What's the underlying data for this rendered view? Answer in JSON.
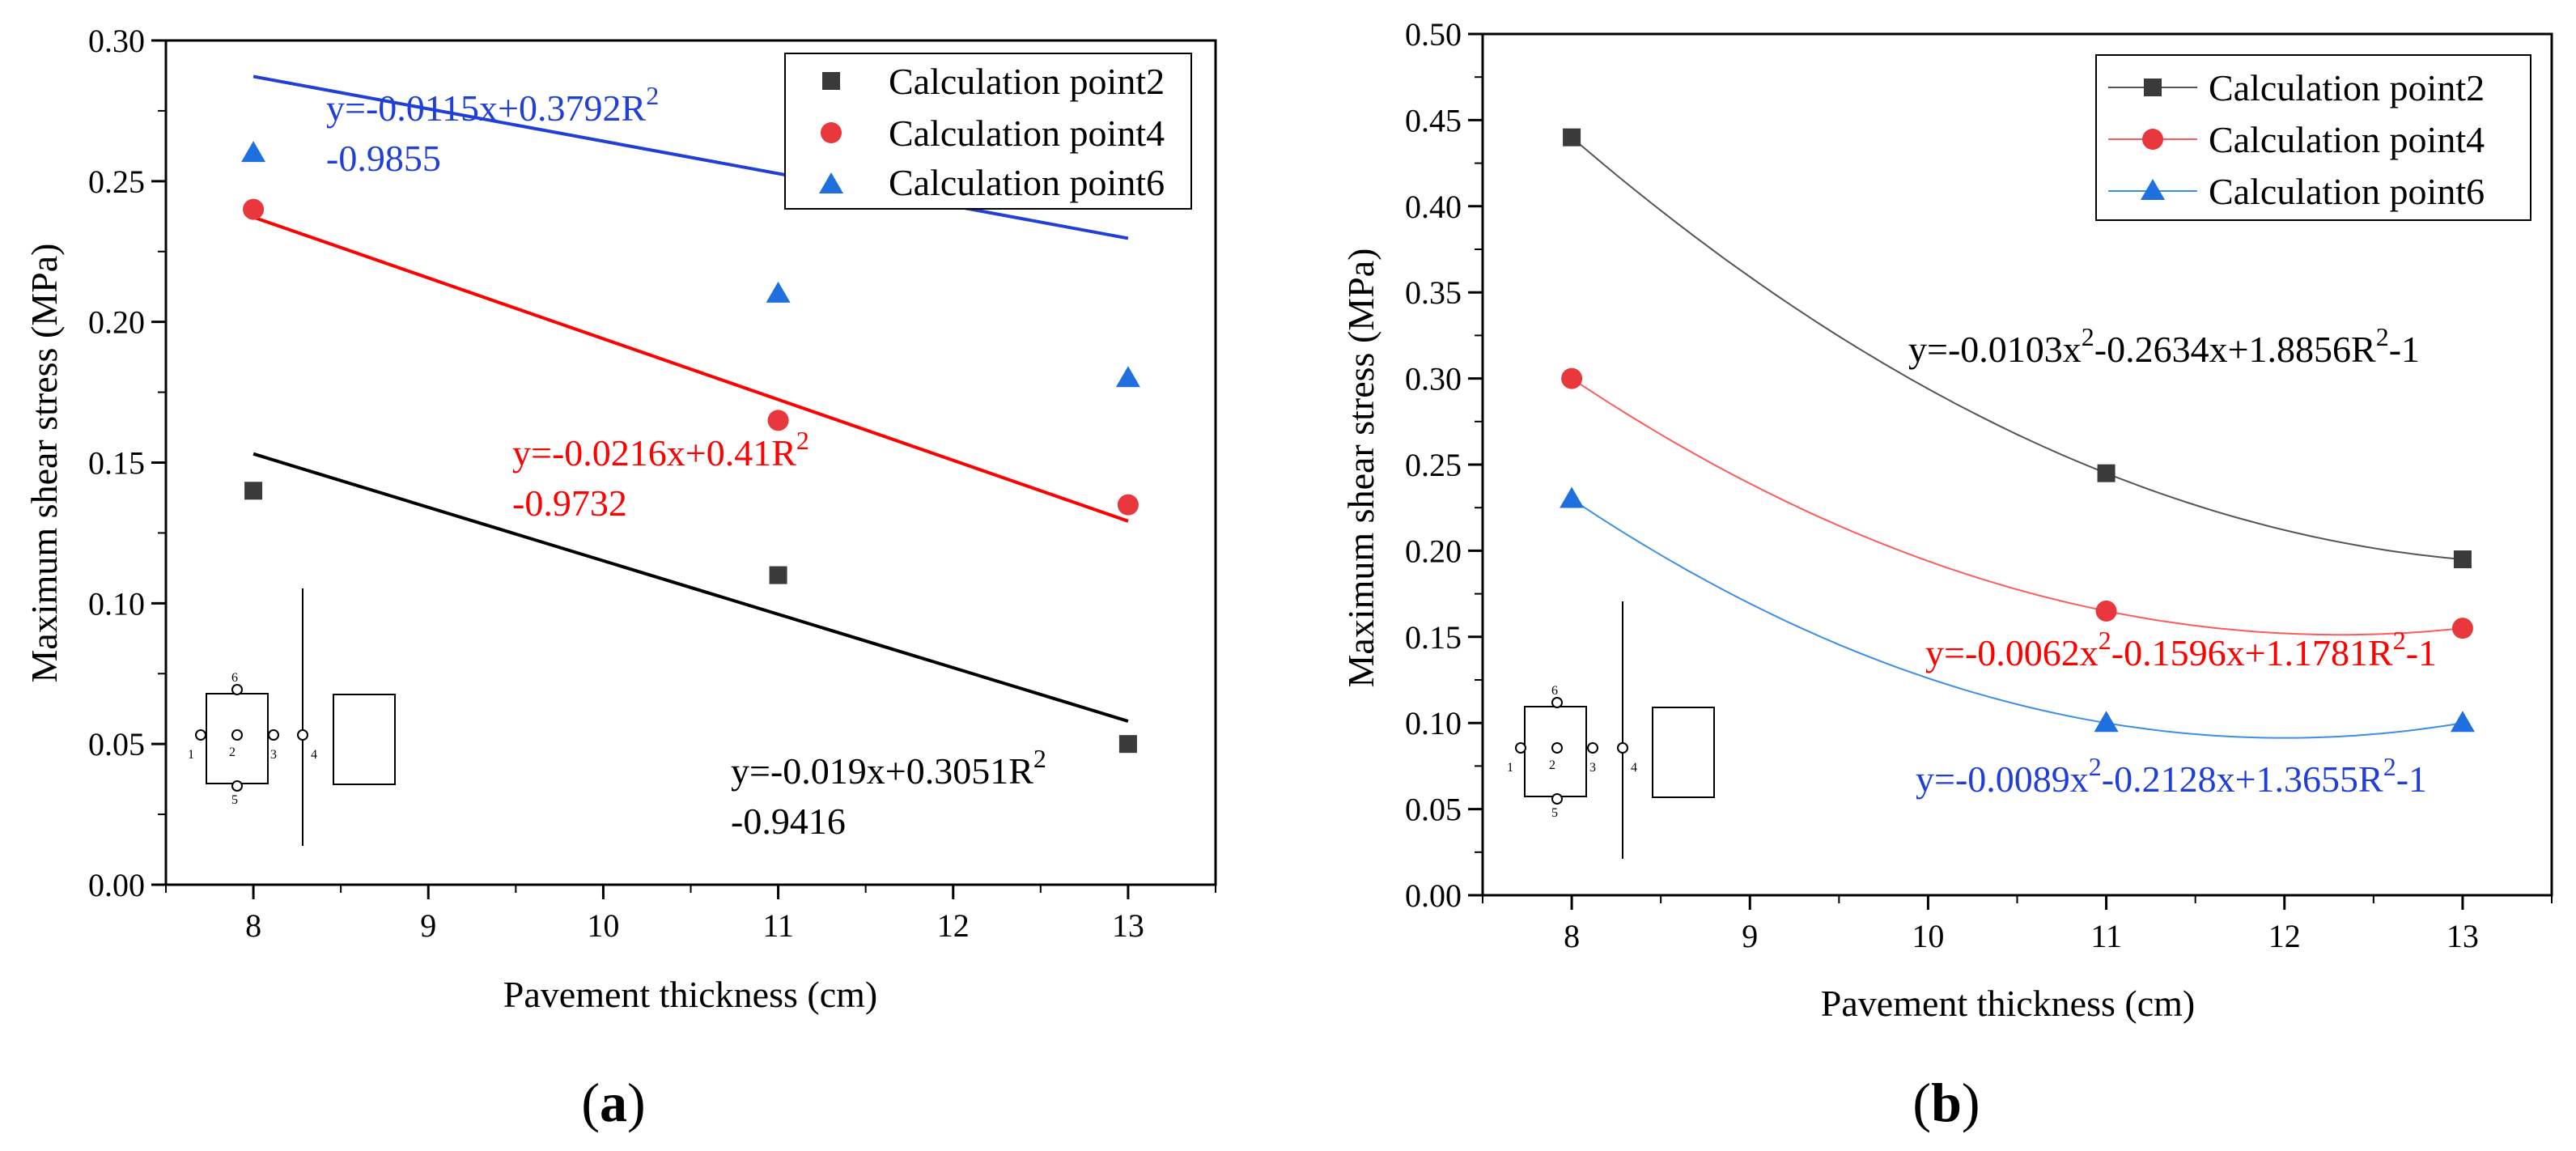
{
  "colors": {
    "series_black": "#3a3a3a",
    "series_red": "#e8383d",
    "series_blue": "#1f6fde",
    "fit_black": "#000000",
    "fit_red": "#ff0000",
    "fit_blue": "#1f3fd8",
    "curve_grey": "#555555",
    "curve_red": "#ff5a5a",
    "curve_blue": "#3d8ee6",
    "eq_black": "#000000",
    "eq_red": "#ff0000",
    "eq_blue": "#1f3fd8"
  },
  "panels": {
    "a": {
      "label": "(a)",
      "label_letter": "a",
      "xlabel": "Pavement thickness (cm)",
      "ylabel": "Maximum shear stress (MPa)",
      "x_ticks": [
        "8",
        "9",
        "10",
        "11",
        "12",
        "13"
      ],
      "y_ticks": [
        "0.00",
        "0.05",
        "0.10",
        "0.15",
        "0.20",
        "0.25",
        "0.30"
      ],
      "legend": [
        "Calculation point2",
        "Calculation point4",
        "Calculation point6"
      ],
      "equations": [
        {
          "line1_a": "y=-0.0115x+0.3792R",
          "sup": "2",
          "line2": "-0.9855"
        },
        {
          "line1_a": "y=-0.0216x+0.41R",
          "sup": "2",
          "line2": "-0.9732"
        },
        {
          "line1_a": "y=-0.019x+0.3051R",
          "sup": "2",
          "line2": "-0.9416"
        }
      ],
      "inset_numbers": [
        "1",
        "2",
        "3",
        "4",
        "5",
        "6"
      ]
    },
    "b": {
      "label": "(b)",
      "label_letter": "b",
      "xlabel": "Pavement thickness (cm)",
      "ylabel": "Maximum shear stress (MPa)",
      "x_ticks": [
        "8",
        "9",
        "10",
        "11",
        "12",
        "13"
      ],
      "y_ticks": [
        "0.00",
        "0.05",
        "0.10",
        "0.15",
        "0.20",
        "0.25",
        "0.30",
        "0.35",
        "0.40",
        "0.45",
        "0.50"
      ],
      "legend": [
        "Calculation point2",
        "Calculation point4",
        "Calculation point6"
      ],
      "equations": [
        {
          "p1": "y=-0.0103x",
          "s1": "2",
          "p2": "-0.2634x+1.8856R",
          "s2": "2",
          "p3": "-1"
        },
        {
          "p1": "y=-0.0062x",
          "s1": "2",
          "p2": "-0.1596x+1.1781R",
          "s2": "2",
          "p3": "-1"
        },
        {
          "p1": "y=-0.0089x",
          "s1": "2",
          "p2": "-0.2128x+1.3655R",
          "s2": "2",
          "p3": "-1"
        }
      ],
      "inset_numbers": [
        "1",
        "2",
        "3",
        "4",
        "5",
        "6"
      ]
    }
  },
  "chart_data": [
    {
      "panel": "a",
      "type": "scatter",
      "xlabel": "Pavement thickness (cm)",
      "ylabel": "Maximum shear stress (MPa)",
      "xlim": [
        7.5,
        13.5
      ],
      "ylim": [
        0,
        0.3
      ],
      "legend_position": "top-right",
      "series": [
        {
          "name": "Calculation point2",
          "marker": "square",
          "x": [
            8,
            11,
            13
          ],
          "y": [
            0.14,
            0.11,
            0.05
          ],
          "fit": {
            "slope": -0.019,
            "intercept": 0.3051,
            "r2": 0.9416
          }
        },
        {
          "name": "Calculation point4",
          "marker": "circle",
          "x": [
            8,
            11,
            13
          ],
          "y": [
            0.24,
            0.165,
            0.135
          ],
          "fit": {
            "slope": -0.0216,
            "intercept": 0.41,
            "r2": 0.9732
          }
        },
        {
          "name": "Calculation point6",
          "marker": "triangle",
          "x": [
            8,
            11,
            13
          ],
          "y": [
            0.26,
            0.21,
            0.18
          ],
          "fit": {
            "slope": -0.0115,
            "intercept": 0.3792,
            "r2": 0.9855
          }
        }
      ]
    },
    {
      "panel": "b",
      "type": "line",
      "xlabel": "Pavement thickness (cm)",
      "ylabel": "Maximum shear stress (MPa)",
      "xlim": [
        7.5,
        13.5
      ],
      "ylim": [
        0,
        0.5
      ],
      "legend_position": "top-right",
      "series": [
        {
          "name": "Calculation point2",
          "marker": "square",
          "x": [
            8,
            11,
            13
          ],
          "y": [
            0.44,
            0.245,
            0.195
          ],
          "fit": {
            "a": -0.0103,
            "b": -0.2634,
            "c": 1.8856,
            "r2": 1
          }
        },
        {
          "name": "Calculation point4",
          "marker": "circle",
          "x": [
            8,
            11,
            13
          ],
          "y": [
            0.3,
            0.165,
            0.155
          ],
          "fit": {
            "a": -0.0062,
            "b": -0.1596,
            "c": 1.1781,
            "r2": 1
          }
        },
        {
          "name": "Calculation point6",
          "marker": "triangle",
          "x": [
            8,
            11,
            13
          ],
          "y": [
            0.23,
            0.1,
            0.1
          ],
          "fit": {
            "a": -0.0089,
            "b": -0.2128,
            "c": 1.3655,
            "r2": 1
          }
        }
      ]
    }
  ]
}
